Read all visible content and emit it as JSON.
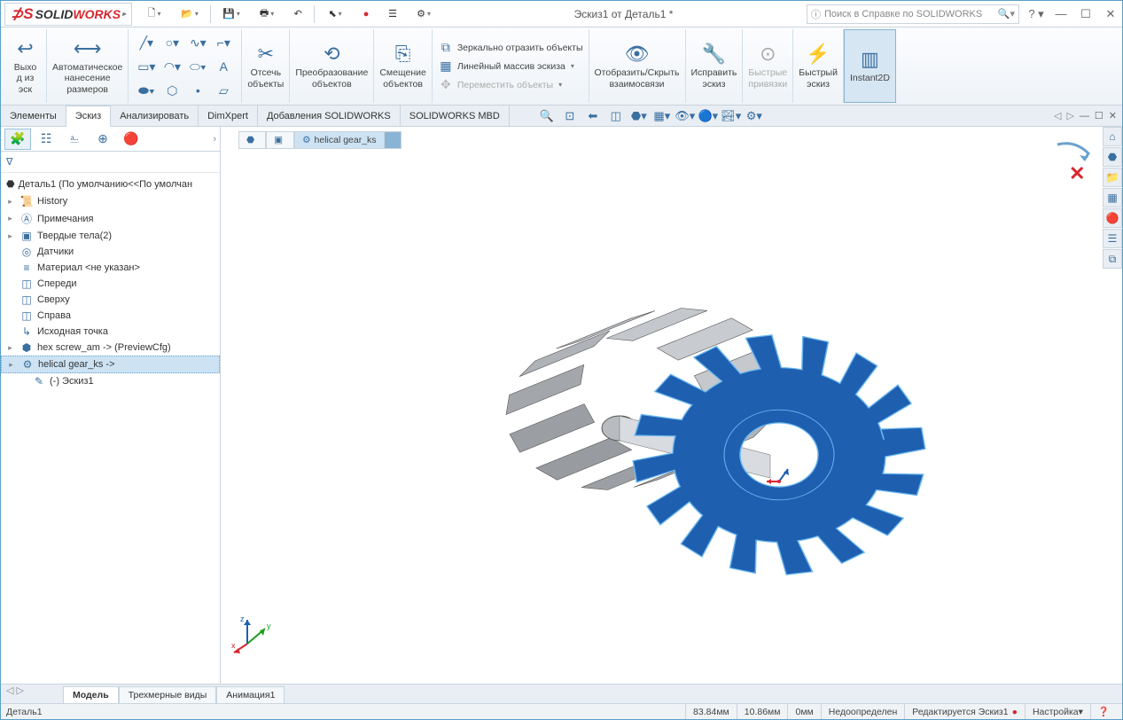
{
  "app": {
    "name_solid": "SOLID",
    "name_works": "WORKS",
    "title": "Эскиз1 от Деталь1 *",
    "search_placeholder": "Поиск в Справке по SOLIDWORKS"
  },
  "ribbon": {
    "exit_sketch": "Выхо\nд из\nэск",
    "smart_dim": "Автоматическое\nнанесение\nразмеров",
    "trim": "Отсечь\nобъекты",
    "convert": "Преобразование\nобъектов",
    "offset": "Смещение\nобъектов",
    "mirror": "Зеркально отразить объекты",
    "linear": "Линейный массив эскиза",
    "move": "Переместить объекты",
    "display": "Отобразить/Скрыть\nвзаимосвязи",
    "repair": "Исправить\nэскиз",
    "quick_snaps": "Быстрые\nпривязки",
    "rapid": "Быстрый\nэскиз",
    "instant2d": "Instant2D"
  },
  "tabs": [
    "Элементы",
    "Эскиз",
    "Анализировать",
    "DimXpert",
    "Добавления SOLIDWORKS",
    "SOLIDWORKS MBD"
  ],
  "active_tab": 1,
  "breadcrumb": {
    "part": "",
    "body": "",
    "feature": "helical gear_ks"
  },
  "tree": {
    "root": "Деталь1 (По умолчанию<<По умолчан",
    "items": [
      {
        "label": "History",
        "icon": "📜",
        "exp": true
      },
      {
        "label": "Примечания",
        "icon": "Ⓐ",
        "exp": true
      },
      {
        "label": "Твердые тела(2)",
        "icon": "▣",
        "exp": true
      },
      {
        "label": "Датчики",
        "icon": "◎",
        "exp": false
      },
      {
        "label": "Материал <не указан>",
        "icon": "≡",
        "exp": false
      },
      {
        "label": "Спереди",
        "icon": "◫",
        "exp": false
      },
      {
        "label": "Сверху",
        "icon": "◫",
        "exp": false
      },
      {
        "label": "Справа",
        "icon": "◫",
        "exp": false
      },
      {
        "label": "Исходная точка",
        "icon": "↳",
        "exp": false
      },
      {
        "label": "hex screw_am -> (PreviewCfg)",
        "icon": "⬢",
        "exp": true
      },
      {
        "label": "helical gear_ks ->",
        "icon": "⚙",
        "exp": true,
        "sel": true
      },
      {
        "label": "(-) Эскиз1",
        "icon": "✎",
        "exp": false,
        "l2": true
      }
    ]
  },
  "bottom_tabs": [
    "Модель",
    "Трехмерные виды",
    "Анимация1"
  ],
  "active_bottom_tab": 0,
  "status": {
    "doc": "Деталь1",
    "x": "83.84мм",
    "y": "10.86мм",
    "z": "0мм",
    "state": "Недоопределен",
    "mode": "Редактируется Эскиз1",
    "custom": "Настройка"
  },
  "gear": {
    "teeth": 16,
    "face_color": "#1f5fb0",
    "face_hl": "#2f78d0",
    "body_color": "#b8bcc0",
    "body_dark": "#8a8e92",
    "body_light": "#d8dce0"
  }
}
